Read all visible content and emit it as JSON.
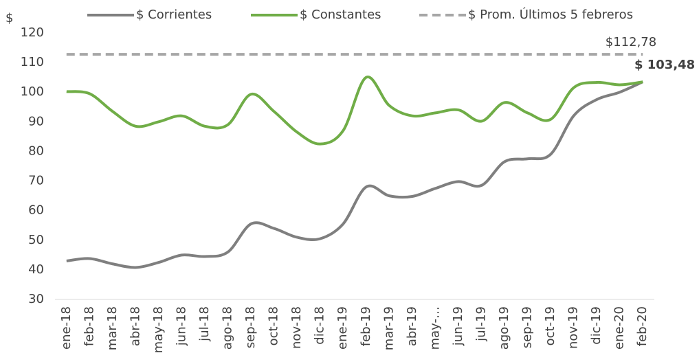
{
  "chart_data": {
    "type": "line",
    "y_axis_label": "$",
    "categories": [
      "ene-18",
      "feb-18",
      "mar-18",
      "abr-18",
      "may-18",
      "jun-18",
      "jul-18",
      "ago-18",
      "sep-18",
      "oct-18",
      "nov-18",
      "dic-18",
      "ene-19",
      "feb-19",
      "mar-19",
      "abr-19",
      "may-…",
      "jun-19",
      "jul-19",
      "ago-19",
      "sep-19",
      "oct-19",
      "nov-19",
      "dic-19",
      "ene-20",
      "feb-20"
    ],
    "series": [
      {
        "name": "$ Corrientes",
        "color": "#7f7f7f",
        "values": [
          43,
          43.8,
          42,
          40.8,
          42.5,
          45,
          44.5,
          46,
          55.5,
          54,
          51,
          50.5,
          55.5,
          68,
          65,
          64.8,
          67.5,
          69.8,
          68.5,
          76.5,
          77.5,
          79,
          92,
          97.5,
          100,
          103.48
        ]
      },
      {
        "name": "$ Constantes",
        "color": "#70ad47",
        "values": [
          100.2,
          99.5,
          93.5,
          88.5,
          90,
          92,
          88.5,
          89,
          99.3,
          93.5,
          86.5,
          82.5,
          87,
          105,
          95.5,
          92,
          93,
          94,
          90.2,
          96.5,
          93,
          90.8,
          101.5,
          103.3,
          102.5,
          103.48
        ],
        "value_labels": [
          null,
          null,
          null,
          null,
          null,
          null,
          null,
          null,
          null,
          null,
          null,
          null,
          null,
          null,
          null,
          null,
          null,
          null,
          null,
          null,
          null,
          null,
          null,
          null,
          null,
          "$ 103,48"
        ]
      }
    ],
    "reference_line": {
      "name": "$ Prom. Últimos 5 febreros",
      "color": "#a6a6a6",
      "value": 112.78,
      "label": "$112,78"
    },
    "ylim": [
      30,
      120
    ],
    "yticks": [
      30,
      40,
      50,
      60,
      70,
      80,
      90,
      100,
      110,
      120
    ]
  }
}
